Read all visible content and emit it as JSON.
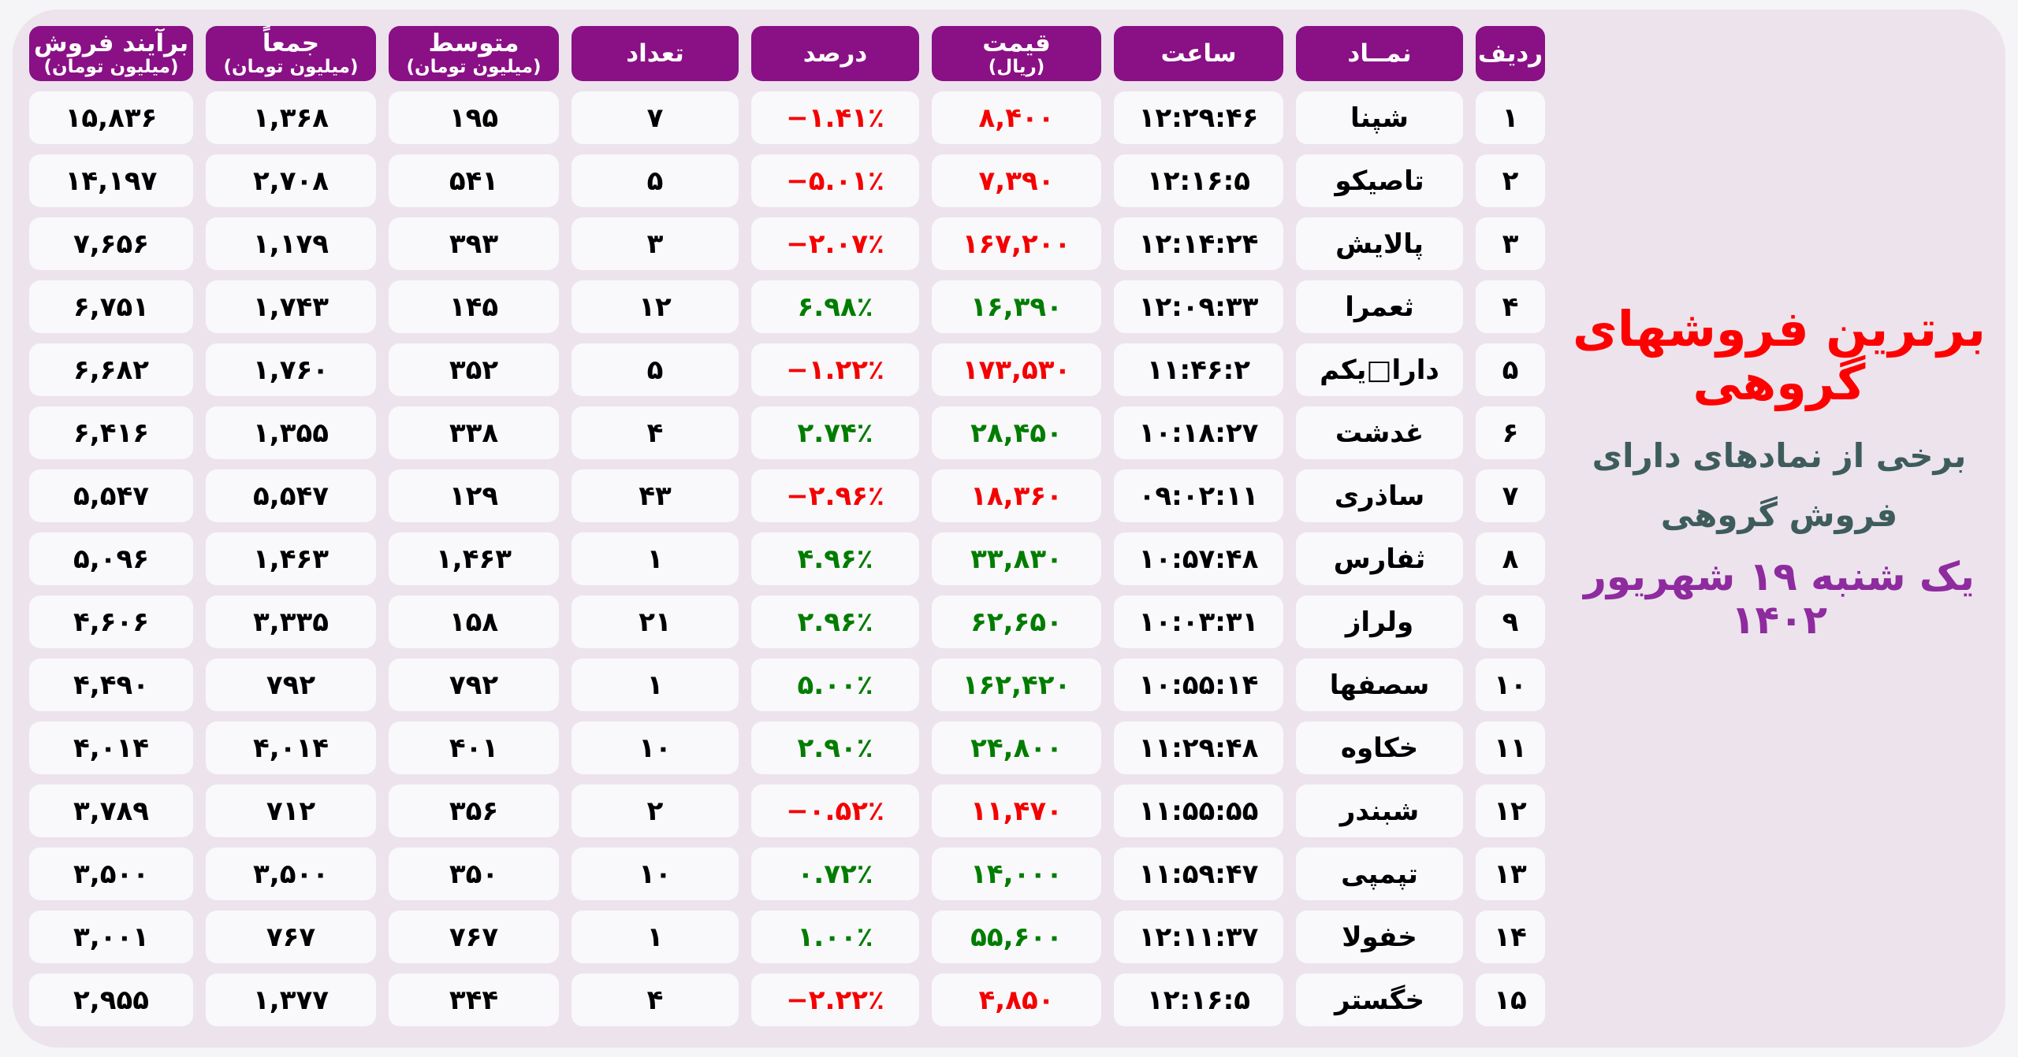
{
  "colors": {
    "page_bg": "#F5F4F6",
    "panel_bg": "#ECE3ED",
    "header_bg": "#8A1085",
    "cell_bg": "#F9F8FB",
    "negative_red": "#F40000",
    "positive_green": "#007C00",
    "title_red": "#FF0000",
    "subtitle_teal": "#3E5C5C",
    "date_purple": "#8E2B9E"
  },
  "title": {
    "main": "برترین فروشهای گروهی",
    "sub1": "برخی از نمادهای دارای",
    "sub2": "فروش گروهی",
    "date": "یک شنبه ۱۹ شهریور ۱۴۰۲"
  },
  "table": {
    "headers": [
      {
        "key": "rank",
        "label": "ردیف",
        "sub": ""
      },
      {
        "key": "symbol",
        "label": "نمــاد",
        "sub": ""
      },
      {
        "key": "time",
        "label": "ساعت",
        "sub": ""
      },
      {
        "key": "price",
        "label": "قیمت",
        "sub": "(ریال)"
      },
      {
        "key": "percent",
        "label": "درصد",
        "sub": ""
      },
      {
        "key": "count",
        "label": "تعداد",
        "sub": ""
      },
      {
        "key": "avg",
        "label": "متوسط",
        "sub": "(میلیون تومان)"
      },
      {
        "key": "sum",
        "label": "جمعاً",
        "sub": "(میلیون تومان)"
      },
      {
        "key": "net",
        "label": "برآیند فروش",
        "sub": "(میلیون تومان)"
      }
    ],
    "rows": [
      {
        "rank": "۱",
        "symbol": "شپنا",
        "time": "۱۲:۲۹:۴۶",
        "price": "۸,۴۰۰",
        "price_color": "red",
        "percent": "−۱.۴۱٪",
        "percent_color": "red",
        "count": "۷",
        "avg": "۱۹۵",
        "sum": "۱,۳۶۸",
        "net": "۱۵,۸۳۶"
      },
      {
        "rank": "۲",
        "symbol": "تاصیکو",
        "time": "۱۲:۱۶:۵",
        "price": "۷,۳۹۰",
        "price_color": "red",
        "percent": "−۵.۰۱٪",
        "percent_color": "red",
        "count": "۵",
        "avg": "۵۴۱",
        "sum": "۲,۷۰۸",
        "net": "۱۴,۱۹۷"
      },
      {
        "rank": "۳",
        "symbol": "پالایش",
        "time": "۱۲:۱۴:۲۴",
        "price": "۱۶۷,۲۰۰",
        "price_color": "red",
        "percent": "−۲.۰۷٪",
        "percent_color": "red",
        "count": "۳",
        "avg": "۳۹۳",
        "sum": "۱,۱۷۹",
        "net": "۷,۶۵۶"
      },
      {
        "rank": "۴",
        "symbol": "ثعمرا",
        "time": "۱۲:۰۹:۳۳",
        "price": "۱۶,۳۹۰",
        "price_color": "green",
        "percent": "۶.۹۸٪",
        "percent_color": "green",
        "count": "۱۲",
        "avg": "۱۴۵",
        "sum": "۱,۷۴۳",
        "net": "۶,۷۵۱"
      },
      {
        "rank": "۵",
        "symbol": "دارا□یکم",
        "time": "۱۱:۴۶:۲",
        "price": "۱۷۳,۵۳۰",
        "price_color": "red",
        "percent": "−۱.۲۲٪",
        "percent_color": "red",
        "count": "۵",
        "avg": "۳۵۲",
        "sum": "۱,۷۶۰",
        "net": "۶,۶۸۲"
      },
      {
        "rank": "۶",
        "symbol": "غدشت",
        "time": "۱۰:۱۸:۲۷",
        "price": "۲۸,۴۵۰",
        "price_color": "green",
        "percent": "۲.۷۴٪",
        "percent_color": "green",
        "count": "۴",
        "avg": "۳۳۸",
        "sum": "۱,۳۵۵",
        "net": "۶,۴۱۶"
      },
      {
        "rank": "۷",
        "symbol": "ساذری",
        "time": "۰۹:۰۲:۱۱",
        "price": "۱۸,۳۶۰",
        "price_color": "red",
        "percent": "−۲.۹۶٪",
        "percent_color": "red",
        "count": "۴۳",
        "avg": "۱۲۹",
        "sum": "۵,۵۴۷",
        "net": "۵,۵۴۷"
      },
      {
        "rank": "۸",
        "symbol": "ثفارس",
        "time": "۱۰:۵۷:۴۸",
        "price": "۳۳,۸۳۰",
        "price_color": "green",
        "percent": "۴.۹۶٪",
        "percent_color": "green",
        "count": "۱",
        "avg": "۱,۴۶۳",
        "sum": "۱,۴۶۳",
        "net": "۵,۰۹۶"
      },
      {
        "rank": "۹",
        "symbol": "ولراز",
        "time": "۱۰:۰۳:۳۱",
        "price": "۶۲,۶۵۰",
        "price_color": "green",
        "percent": "۲.۹۶٪",
        "percent_color": "green",
        "count": "۲۱",
        "avg": "۱۵۸",
        "sum": "۳,۳۳۵",
        "net": "۴,۶۰۶"
      },
      {
        "rank": "۱۰",
        "symbol": "سصفها",
        "time": "۱۰:۵۵:۱۴",
        "price": "۱۶۲,۴۲۰",
        "price_color": "green",
        "percent": "۵.۰۰٪",
        "percent_color": "green",
        "count": "۱",
        "avg": "۷۹۲",
        "sum": "۷۹۲",
        "net": "۴,۴۹۰"
      },
      {
        "rank": "۱۱",
        "symbol": "خکاوه",
        "time": "۱۱:۲۹:۴۸",
        "price": "۲۴,۸۰۰",
        "price_color": "green",
        "percent": "۲.۹۰٪",
        "percent_color": "green",
        "count": "۱۰",
        "avg": "۴۰۱",
        "sum": "۴,۰۱۴",
        "net": "۴,۰۱۴"
      },
      {
        "rank": "۱۲",
        "symbol": "شبندر",
        "time": "۱۱:۵۵:۵۵",
        "price": "۱۱,۴۷۰",
        "price_color": "red",
        "percent": "−۰.۵۲٪",
        "percent_color": "red",
        "count": "۲",
        "avg": "۳۵۶",
        "sum": "۷۱۲",
        "net": "۳,۷۸۹"
      },
      {
        "rank": "۱۳",
        "symbol": "تپمپی",
        "time": "۱۱:۵۹:۴۷",
        "price": "۱۴,۰۰۰",
        "price_color": "green",
        "percent": "۰.۷۲٪",
        "percent_color": "green",
        "count": "۱۰",
        "avg": "۳۵۰",
        "sum": "۳,۵۰۰",
        "net": "۳,۵۰۰"
      },
      {
        "rank": "۱۴",
        "symbol": "خفولا",
        "time": "۱۲:۱۱:۳۷",
        "price": "۵۵,۶۰۰",
        "price_color": "green",
        "percent": "۱.۰۰٪",
        "percent_color": "green",
        "count": "۱",
        "avg": "۷۶۷",
        "sum": "۷۶۷",
        "net": "۳,۰۰۱"
      },
      {
        "rank": "۱۵",
        "symbol": "خگستر",
        "time": "۱۲:۱۶:۵",
        "price": "۴,۸۵۰",
        "price_color": "red",
        "percent": "−۲.۲۲٪",
        "percent_color": "red",
        "count": "۴",
        "avg": "۳۴۴",
        "sum": "۱,۳۷۷",
        "net": "۲,۹۵۵"
      }
    ]
  },
  "chart_data": {
    "type": "table",
    "title": "برترین فروشهای گروهی",
    "subtitle": "برخی از نمادهای دارای فروش گروهی",
    "date": "یک شنبه ۱۹ شهریور ۱۴۰۲",
    "columns": [
      "ردیف",
      "نماد",
      "ساعت",
      "قیمت (ریال)",
      "درصد",
      "تعداد",
      "متوسط (میلیون تومان)",
      "جمعاً (میلیون تومان)",
      "برآیند فروش (میلیون تومان)"
    ],
    "rows": [
      {
        "rank": 1,
        "symbol": "شپنا",
        "time": "12:29:46",
        "price": 8400,
        "percent": -1.41,
        "count": 7,
        "avg": 195,
        "sum": 1368,
        "net": 15836
      },
      {
        "rank": 2,
        "symbol": "تاصیکو",
        "time": "12:16:5",
        "price": 7390,
        "percent": -5.01,
        "count": 5,
        "avg": 541,
        "sum": 2708,
        "net": 14197
      },
      {
        "rank": 3,
        "symbol": "پالایش",
        "time": "12:14:24",
        "price": 167200,
        "percent": -2.07,
        "count": 3,
        "avg": 393,
        "sum": 1179,
        "net": 7656
      },
      {
        "rank": 4,
        "symbol": "ثعمرا",
        "time": "12:09:33",
        "price": 16390,
        "percent": 6.98,
        "count": 12,
        "avg": 145,
        "sum": 1743,
        "net": 6751
      },
      {
        "rank": 5,
        "symbol": "دارا یکم",
        "time": "11:46:2",
        "price": 173530,
        "percent": -1.22,
        "count": 5,
        "avg": 352,
        "sum": 1760,
        "net": 6682
      },
      {
        "rank": 6,
        "symbol": "غدشت",
        "time": "10:18:27",
        "price": 28450,
        "percent": 2.74,
        "count": 4,
        "avg": 338,
        "sum": 1355,
        "net": 6416
      },
      {
        "rank": 7,
        "symbol": "ساذری",
        "time": "09:02:11",
        "price": 18360,
        "percent": -2.96,
        "count": 43,
        "avg": 129,
        "sum": 5547,
        "net": 5547
      },
      {
        "rank": 8,
        "symbol": "ثفارس",
        "time": "10:57:48",
        "price": 33830,
        "percent": 4.96,
        "count": 1,
        "avg": 1463,
        "sum": 1463,
        "net": 5096
      },
      {
        "rank": 9,
        "symbol": "ولراز",
        "time": "10:03:31",
        "price": 62650,
        "percent": 2.96,
        "count": 21,
        "avg": 158,
        "sum": 3335,
        "net": 4606
      },
      {
        "rank": 10,
        "symbol": "سصفها",
        "time": "10:55:14",
        "price": 162420,
        "percent": 5.0,
        "count": 1,
        "avg": 792,
        "sum": 792,
        "net": 4490
      },
      {
        "rank": 11,
        "symbol": "خکاوه",
        "time": "11:29:48",
        "price": 24800,
        "percent": 2.9,
        "count": 10,
        "avg": 401,
        "sum": 4014,
        "net": 4014
      },
      {
        "rank": 12,
        "symbol": "شبندر",
        "time": "11:55:55",
        "price": 11470,
        "percent": -0.52,
        "count": 2,
        "avg": 356,
        "sum": 712,
        "net": 3789
      },
      {
        "rank": 13,
        "symbol": "تپمپی",
        "time": "11:59:47",
        "price": 14000,
        "percent": 0.72,
        "count": 10,
        "avg": 350,
        "sum": 3500,
        "net": 3500
      },
      {
        "rank": 14,
        "symbol": "خفولا",
        "time": "12:11:37",
        "price": 55600,
        "percent": 1.0,
        "count": 1,
        "avg": 767,
        "sum": 767,
        "net": 3001
      },
      {
        "rank": 15,
        "symbol": "خگستر",
        "time": "12:16:5",
        "price": 4850,
        "percent": -2.22,
        "count": 4,
        "avg": 344,
        "sum": 1377,
        "net": 2955
      }
    ]
  }
}
